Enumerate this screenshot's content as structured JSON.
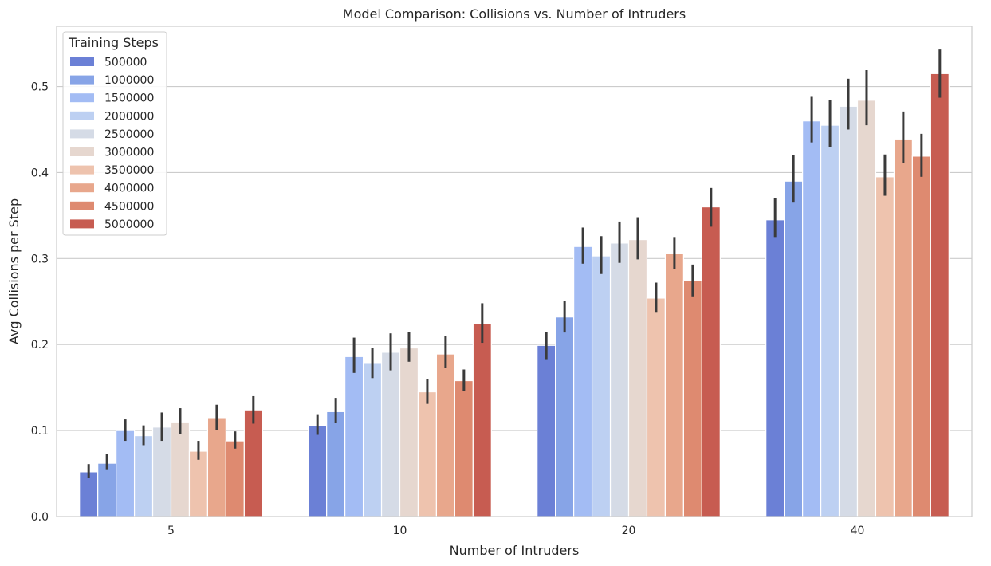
{
  "chart_data": {
    "type": "bar",
    "title": "Model Comparison: Collisions vs. Number of Intruders",
    "xlabel": "Number of Intruders",
    "ylabel": "Avg Collisions per Step",
    "categories": [
      "5",
      "10",
      "20",
      "40"
    ],
    "ylim": [
      0,
      0.57
    ],
    "yticks": [
      0.0,
      0.1,
      0.2,
      0.3,
      0.4,
      0.5
    ],
    "grid": "horizontal",
    "legend": {
      "title": "Training Steps",
      "placement": "top-left"
    },
    "series": [
      {
        "name": "500000",
        "color": "#6b80d6",
        "values": [
          0.052,
          0.106,
          0.199,
          0.345
        ],
        "err_low": [
          0.045,
          0.095,
          0.183,
          0.325
        ],
        "err_high": [
          0.061,
          0.119,
          0.215,
          0.37
        ]
      },
      {
        "name": "1000000",
        "color": "#87a4e7",
        "values": [
          0.062,
          0.122,
          0.232,
          0.39
        ],
        "err_low": [
          0.055,
          0.109,
          0.214,
          0.365
        ],
        "err_high": [
          0.073,
          0.138,
          0.251,
          0.42
        ]
      },
      {
        "name": "1500000",
        "color": "#a3bcf4",
        "values": [
          0.1,
          0.186,
          0.314,
          0.46
        ],
        "err_low": [
          0.088,
          0.167,
          0.294,
          0.435
        ],
        "err_high": [
          0.113,
          0.208,
          0.336,
          0.488
        ]
      },
      {
        "name": "2000000",
        "color": "#bdd0f2",
        "values": [
          0.094,
          0.179,
          0.303,
          0.455
        ],
        "err_low": [
          0.083,
          0.161,
          0.282,
          0.43
        ],
        "err_high": [
          0.106,
          0.196,
          0.326,
          0.484
        ]
      },
      {
        "name": "2500000",
        "color": "#d5dbe6",
        "values": [
          0.104,
          0.191,
          0.318,
          0.477
        ],
        "err_low": [
          0.088,
          0.17,
          0.295,
          0.45
        ],
        "err_high": [
          0.121,
          0.213,
          0.343,
          0.509
        ]
      },
      {
        "name": "3000000",
        "color": "#e6d7cf",
        "values": [
          0.11,
          0.196,
          0.322,
          0.484
        ],
        "err_low": [
          0.096,
          0.18,
          0.299,
          0.455
        ],
        "err_high": [
          0.126,
          0.215,
          0.348,
          0.519
        ]
      },
      {
        "name": "3500000",
        "color": "#eec3ae",
        "values": [
          0.076,
          0.145,
          0.254,
          0.395
        ],
        "err_low": [
          0.066,
          0.131,
          0.237,
          0.373
        ],
        "err_high": [
          0.088,
          0.16,
          0.272,
          0.421
        ]
      },
      {
        "name": "4000000",
        "color": "#e8a78c",
        "values": [
          0.115,
          0.189,
          0.306,
          0.439
        ],
        "err_low": [
          0.101,
          0.173,
          0.288,
          0.411
        ],
        "err_high": [
          0.13,
          0.21,
          0.325,
          0.471
        ]
      },
      {
        "name": "4500000",
        "color": "#de8a70",
        "values": [
          0.088,
          0.158,
          0.274,
          0.419
        ],
        "err_low": [
          0.079,
          0.146,
          0.256,
          0.395
        ],
        "err_high": [
          0.099,
          0.171,
          0.293,
          0.445
        ]
      },
      {
        "name": "5000000",
        "color": "#c75c51",
        "values": [
          0.124,
          0.224,
          0.36,
          0.515
        ],
        "err_low": [
          0.108,
          0.202,
          0.337,
          0.487
        ],
        "err_high": [
          0.14,
          0.248,
          0.382,
          0.543
        ]
      }
    ]
  }
}
